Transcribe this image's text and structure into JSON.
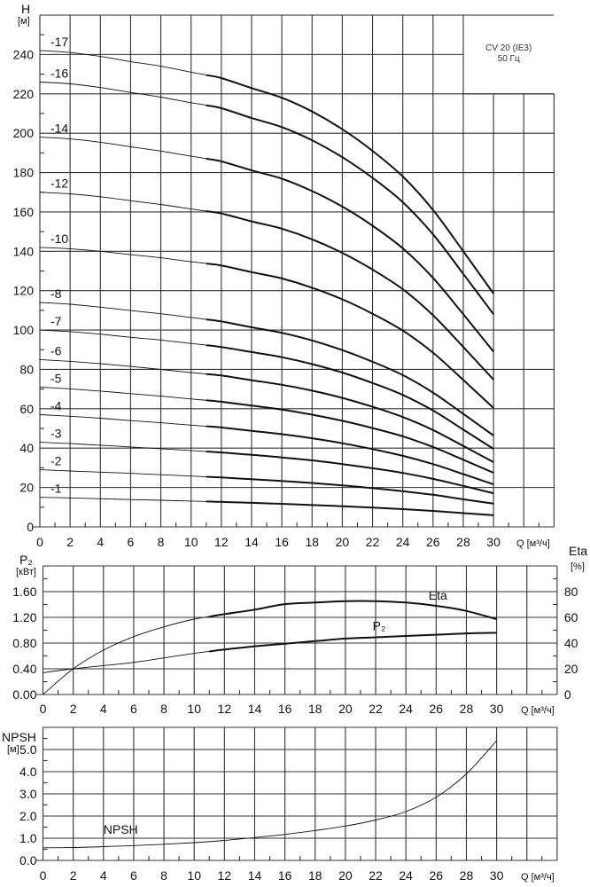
{
  "chart_data": [
    {
      "type": "line",
      "ylabel": "H",
      "yunit": "[м]",
      "xlabel": "Q [м³/ч]",
      "xlim": [
        0,
        34
      ],
      "ylim": [
        0,
        260
      ],
      "grid": true,
      "x_tick_labels": [
        "0",
        "2",
        "4",
        "6",
        "8",
        "10",
        "12",
        "14",
        "16",
        "18",
        "20",
        "22",
        "24",
        "26",
        "28",
        "30"
      ],
      "y_tick_labels": [
        "0",
        "20",
        "40",
        "60",
        "80",
        "100",
        "120",
        "140",
        "160",
        "180",
        "200",
        "220",
        "240"
      ],
      "annotation": {
        "model": "CV 20 (IE3)",
        "frequency": "50 Гц"
      },
      "thick_from_q": 11,
      "x": [
        0,
        2,
        4,
        6,
        8,
        10,
        12,
        14,
        16,
        18,
        20,
        22,
        24,
        26,
        28,
        30
      ],
      "series": [
        {
          "name": "-17",
          "values": [
            242,
            241,
            239,
            236.4,
            234,
            231,
            228,
            222.9,
            218,
            211,
            202,
            191,
            178,
            161,
            140,
            118.5
          ]
        },
        {
          "name": "-16",
          "values": [
            226,
            225.1,
            223.2,
            220.7,
            218.3,
            215.5,
            212.7,
            207.7,
            203.1,
            196.4,
            187.8,
            177.3,
            164.9,
            148.6,
            128.5,
            108
          ]
        },
        {
          "name": "-14",
          "values": [
            198,
            197.1,
            195.4,
            193.1,
            190.9,
            188.3,
            185.7,
            181.1,
            176.9,
            170.6,
            162.7,
            153,
            141.5,
            126.5,
            108,
            89
          ]
        },
        {
          "name": "-12",
          "values": [
            170,
            169.2,
            167.7,
            165.7,
            163.8,
            161.5,
            159.2,
            155.2,
            151.5,
            146.1,
            139.2,
            130.7,
            120.7,
            107.5,
            91.4,
            74.8
          ]
        },
        {
          "name": "-10",
          "values": [
            142,
            141.3,
            140,
            138.3,
            136.7,
            134.7,
            132.8,
            129.4,
            126.2,
            121.5,
            115.6,
            108.3,
            99.7,
            88.5,
            74.6,
            60.4
          ]
        },
        {
          "name": "-8",
          "values": [
            114,
            113.1,
            111.6,
            109.9,
            108.3,
            106.4,
            104.4,
            101.4,
            98.6,
            94.7,
            89.8,
            83.9,
            77.1,
            68.2,
            57.4,
            46.4
          ]
        },
        {
          "name": "-7",
          "values": [
            100,
            99.2,
            97.9,
            96.3,
            94.9,
            93.2,
            91.4,
            88.8,
            86.2,
            82.7,
            78.4,
            73.1,
            67,
            59.1,
            49.4,
            39.6
          ]
        },
        {
          "name": "-6",
          "values": [
            85,
            84.1,
            82.9,
            81.5,
            80,
            78.4,
            76.9,
            74.5,
            72.2,
            69.2,
            65.5,
            61,
            55.8,
            49.2,
            41.1,
            32.9
          ]
        },
        {
          "name": "-5",
          "values": [
            71,
            70.1,
            69,
            67.7,
            66.4,
            65,
            63.6,
            61.6,
            59.6,
            57,
            53.9,
            50.2,
            46,
            40.6,
            34.1,
            27.5
          ]
        },
        {
          "name": "-4",
          "values": [
            57,
            56.2,
            55.2,
            54,
            52.9,
            51.7,
            50.5,
            48.8,
            47.1,
            45,
            42.5,
            39.5,
            36.1,
            31.9,
            26.8,
            21.6
          ]
        },
        {
          "name": "-3",
          "values": [
            43,
            42.3,
            41.5,
            40.6,
            39.7,
            38.8,
            37.8,
            36.6,
            35.3,
            33.8,
            31.9,
            29.8,
            27.4,
            24.4,
            20.8,
            17.1
          ]
        },
        {
          "name": "-2",
          "values": [
            29,
            28.4,
            27.8,
            27.2,
            26.5,
            25.8,
            25.1,
            24.2,
            23.3,
            22.3,
            21.1,
            19.7,
            18.1,
            16.3,
            14,
            11.8
          ]
        },
        {
          "name": "-1",
          "values": [
            15,
            14.7,
            14.3,
            13.9,
            13.5,
            13.1,
            12.7,
            12.2,
            11.7,
            11.1,
            10.5,
            9.8,
            9,
            8.1,
            7,
            5.9
          ]
        }
      ]
    },
    {
      "type": "line",
      "ylabel": "P₂",
      "yunit": "[кВт]",
      "y2label": "Eta",
      "y2unit": "[%]",
      "xlabel": "Q [м³/ч]",
      "xlim": [
        0,
        34
      ],
      "ylim": [
        0,
        2.0
      ],
      "y2lim": [
        0,
        100
      ],
      "grid": true,
      "x_tick_labels": [
        "0",
        "2",
        "4",
        "6",
        "8",
        "10",
        "12",
        "14",
        "16",
        "18",
        "20",
        "22",
        "24",
        "26",
        "28",
        "30"
      ],
      "y_tick_labels": [
        "0.00",
        "0.40",
        "0.80",
        "1.20",
        "1.60"
      ],
      "y2_tick_labels": [
        "0",
        "20",
        "40",
        "60",
        "80"
      ],
      "thick_from_q": 11,
      "x": [
        0,
        2,
        4,
        6,
        8,
        10,
        12,
        14,
        16,
        18,
        20,
        22,
        24,
        26,
        28,
        30
      ],
      "series": [
        {
          "name": "Eta",
          "axis": "right",
          "values": [
            0,
            20,
            34.5,
            45,
            52.6,
            58.6,
            62.5,
            66,
            70.3,
            71.5,
            72.6,
            72.6,
            71.5,
            69,
            65,
            58.6
          ]
        },
        {
          "name": "P₂",
          "axis": "left",
          "values": [
            0.34,
            0.4,
            0.45,
            0.5,
            0.57,
            0.64,
            0.7,
            0.75,
            0.79,
            0.83,
            0.87,
            0.89,
            0.91,
            0.93,
            0.95,
            0.96
          ]
        }
      ]
    },
    {
      "type": "line",
      "ylabel": "NPSH",
      "yunit": "[м]",
      "xlabel": "Q [м³/ч]",
      "xlim": [
        0,
        34
      ],
      "ylim": [
        0,
        6
      ],
      "grid": true,
      "x_tick_labels": [
        "0",
        "2",
        "4",
        "6",
        "8",
        "10",
        "12",
        "14",
        "16",
        "18",
        "20",
        "22",
        "24",
        "26",
        "28",
        "30"
      ],
      "y_tick_labels": [
        "0.0",
        "1.0",
        "2.0",
        "3.0",
        "4.0",
        "5.0"
      ],
      "x": [
        0,
        2,
        4,
        6,
        8,
        10,
        12,
        14,
        16,
        18,
        20,
        22,
        24,
        26,
        28,
        30
      ],
      "series": [
        {
          "name": "NPSH",
          "values": [
            0.57,
            0.58,
            0.62,
            0.67,
            0.73,
            0.8,
            0.9,
            1.03,
            1.17,
            1.35,
            1.55,
            1.82,
            2.2,
            2.85,
            3.9,
            5.4
          ]
        }
      ]
    }
  ]
}
